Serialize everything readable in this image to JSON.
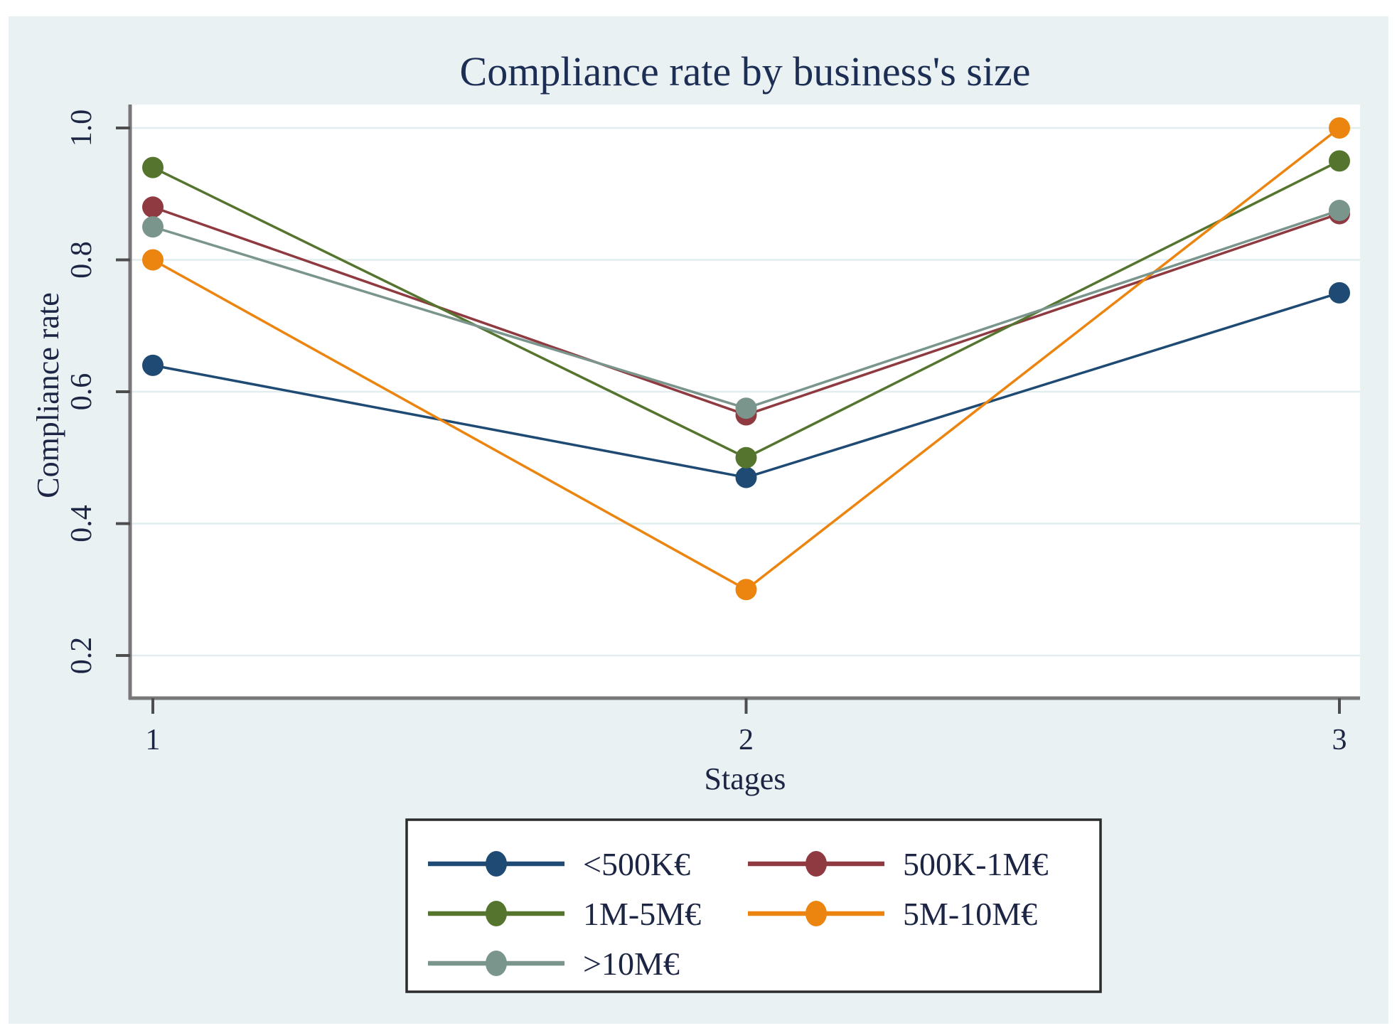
{
  "style": {
    "page_bg": "#ffffff",
    "canvas_bg": "#e9f1f3",
    "plot_bg": "#ffffff",
    "grid_color": "#e2edef",
    "axis_color": "#787878",
    "tick_color": "#4d4d4d",
    "text_color": "#1c2644",
    "title_color": "#1d2e55",
    "legend_border": "#2b2b2b",
    "legend_bg": "#ffffff"
  },
  "chart_data": {
    "type": "line",
    "title": "Compliance rate by business's size",
    "xlabel": "Stages",
    "ylabel": "Compliance rate",
    "x": [
      1,
      2,
      3
    ],
    "xtick_labels": [
      "1",
      "2",
      "3"
    ],
    "yticks": [
      0.2,
      0.4,
      0.6,
      0.8,
      1.0
    ],
    "ytick_labels": [
      "0.2",
      "0.4",
      "0.6",
      "0.8",
      "1.0"
    ],
    "ylim": [
      0.17,
      1.04
    ],
    "xlim": [
      0.96,
      3.06
    ],
    "grid": true,
    "legend_position": "bottom-box",
    "series": [
      {
        "name": "<500K€",
        "color": "#1e4a73",
        "values": [
          0.64,
          0.47,
          0.75
        ]
      },
      {
        "name": "500K-1M€",
        "color": "#8f3a40",
        "values": [
          0.88,
          0.565,
          0.87
        ]
      },
      {
        "name": "1M-5M€",
        "color": "#55752f",
        "values": [
          0.94,
          0.5,
          0.95
        ]
      },
      {
        "name": "5M-10M€",
        "color": "#eb850f",
        "values": [
          0.8,
          0.3,
          1.0
        ]
      },
      {
        "name": ">10M€",
        "color": "#7a958b",
        "values": [
          0.85,
          0.575,
          0.875
        ]
      }
    ]
  }
}
